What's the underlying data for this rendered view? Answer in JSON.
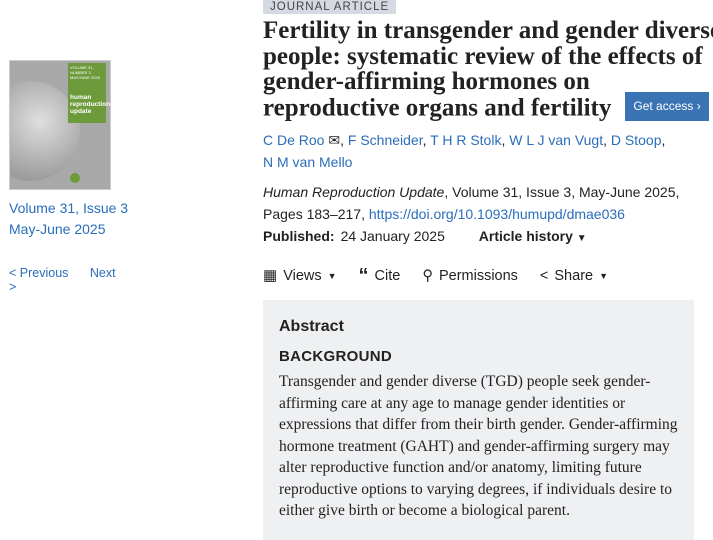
{
  "cover": {
    "series": "HUMAN REPRODUCTION UPDATE",
    "volume": "VOLUME 31, NUMBER 3",
    "date": "MAY/JUNE 2025",
    "journal": "human reproduction update"
  },
  "issue": {
    "volume": "Volume 31, Issue 3",
    "date": "May-June 2025"
  },
  "nav": {
    "previous": "< Previous",
    "next": "Next >"
  },
  "article": {
    "type": "JOURNAL ARTICLE",
    "title_lines": [
      "Fertility in transgender and gender diverse",
      "people: systematic review of the effects of",
      "gender-affirming hormones on",
      "reproductive organs and fertility"
    ],
    "get_access": "Get access",
    "authors": [
      "C De Roo",
      "F Schneider",
      "T H R Stolk",
      "W L J van Vugt",
      "D Stoop",
      "N M van Mello"
    ],
    "journal": "Human Reproduction Update",
    "citation": ", Volume 31, Issue 3, May-June 2025, Pages 183–217, ",
    "doi": "https://doi.org/10.1093/humupd/dmae036",
    "published_label": "Published:",
    "published_date": "24 January 2025",
    "article_history": "Article history"
  },
  "toolbar": {
    "views": "Views",
    "cite": "Cite",
    "permissions": "Permissions",
    "share": "Share"
  },
  "abstract": {
    "heading": "Abstract",
    "section": "BACKGROUND",
    "text": "Transgender and gender diverse (TGD) people seek gender-affirming care at any age to manage gender identities or expressions that differ from their birth gender. Gender-affirming hormone treatment (GAHT) and gender-affirming surgery may alter reproductive function and/or anatomy, limiting future reproductive options to varying degrees, if individuals desire to either give birth or become a biological parent."
  }
}
